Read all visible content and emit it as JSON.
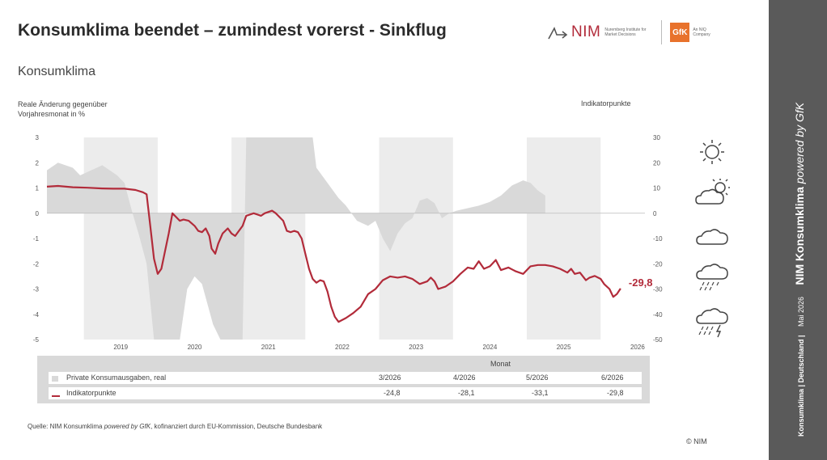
{
  "header": {
    "title": "Konsumklima beendet – zumindest vorerst - Sinkflug",
    "subtitle": "Konsumklima",
    "nim_logo_text": "NIM",
    "nim_logo_sub": "Nuremberg Institute for Market Decisions",
    "gfk_logo_text": "GfK",
    "gfk_logo_sub": "An NIQ Company"
  },
  "axes": {
    "left_label": "Reale Änderung gegenüber Vorjahresmonat in %",
    "right_label": "Indikatorpunkte"
  },
  "sidebar": {
    "brand_line_prefix": "NIM Konsumklima ",
    "brand_line_italic": "powered by GfK",
    "date": "Mai 2026",
    "region": "Konsumklima | Deutschland |"
  },
  "table": {
    "header": "Monat",
    "months": [
      "3/2026",
      "4/2026",
      "5/2026",
      "6/2026"
    ],
    "rows": [
      {
        "label": "Private Konsumausgaben, real",
        "values": [
          "",
          "",
          "",
          ""
        ]
      },
      {
        "label": "Indikatorpunkte",
        "values": [
          "-24,8",
          "-28,1",
          "-33,1",
          "-29,8"
        ]
      }
    ]
  },
  "source": {
    "prefix": "Quelle: NIM Konsumklima ",
    "italic": "powered by GfK",
    "suffix": ", kofinanziert durch EU-Kommission, Deutsche Bundesbank"
  },
  "copyright": "© NIM",
  "colors": {
    "indicator": "#b22b3a",
    "consumption": "#d9d9d9",
    "year_band": "#ececec",
    "sidebar": "#5a5a5a"
  },
  "weather_icons": [
    "sun-icon",
    "sun-cloud-icon",
    "cloud-icon",
    "rain-cloud-icon",
    "thunderstorm-icon"
  ],
  "chart_data": {
    "type": "area",
    "left_axis": {
      "ylim": [
        -5,
        3
      ],
      "ticks": [
        "3",
        "2",
        "1",
        "0",
        "-1",
        "-2",
        "-3",
        "-4",
        "-5"
      ]
    },
    "right_axis": {
      "ylim": [
        -50,
        30
      ],
      "ticks": [
        "30",
        "20",
        "10",
        "0",
        "-10",
        "-20",
        "-30",
        "-40",
        "-50"
      ]
    },
    "x_ticks": [
      "2019",
      "2020",
      "2021",
      "2022",
      "2023",
      "2024",
      "2025",
      "2026"
    ],
    "x_range": [
      2018.5,
      2026.6
    ],
    "shaded_years": [
      2019,
      2021,
      2023,
      2025
    ],
    "last_value_label": "-29,8",
    "series": [
      {
        "name": "Private Konsumausgaben, real",
        "axis": "left",
        "points": [
          [
            2018.5,
            1.7
          ],
          [
            2018.65,
            2.0
          ],
          [
            2018.85,
            1.8
          ],
          [
            2018.95,
            1.5
          ],
          [
            2019.1,
            1.7
          ],
          [
            2019.25,
            1.9
          ],
          [
            2019.45,
            1.5
          ],
          [
            2019.55,
            1.2
          ],
          [
            2019.65,
            0.1
          ],
          [
            2019.75,
            -0.9
          ],
          [
            2019.85,
            -2.0
          ],
          [
            2019.95,
            -5.0
          ],
          [
            2020.3,
            -5.0
          ],
          [
            2020.4,
            -3.0
          ],
          [
            2020.5,
            -2.5
          ],
          [
            2020.6,
            -2.8
          ],
          [
            2020.75,
            -4.4
          ],
          [
            2020.85,
            -5.0
          ],
          [
            2021.15,
            -5.0
          ],
          [
            2021.2,
            3.0
          ],
          [
            2021.5,
            3.0
          ],
          [
            2021.65,
            3.0
          ],
          [
            2022.1,
            3.0
          ],
          [
            2022.15,
            1.8
          ],
          [
            2022.3,
            1.2
          ],
          [
            2022.45,
            0.6
          ],
          [
            2022.55,
            0.3
          ],
          [
            2022.7,
            -0.3
          ],
          [
            2022.85,
            -0.5
          ],
          [
            2022.95,
            -0.3
          ],
          [
            2023.05,
            -1.0
          ],
          [
            2023.15,
            -1.5
          ],
          [
            2023.25,
            -0.8
          ],
          [
            2023.35,
            -0.4
          ],
          [
            2023.45,
            -0.2
          ],
          [
            2023.55,
            0.5
          ],
          [
            2023.65,
            0.6
          ],
          [
            2023.75,
            0.4
          ],
          [
            2023.85,
            -0.2
          ],
          [
            2023.95,
            0.0
          ],
          [
            2024.05,
            0.1
          ],
          [
            2024.2,
            0.2
          ],
          [
            2024.35,
            0.3
          ],
          [
            2024.5,
            0.45
          ],
          [
            2024.65,
            0.7
          ],
          [
            2024.8,
            1.1
          ],
          [
            2024.95,
            1.3
          ],
          [
            2025.05,
            1.2
          ],
          [
            2025.15,
            0.9
          ],
          [
            2025.25,
            0.7
          ]
        ]
      },
      {
        "name": "Indikatorpunkte",
        "axis": "right",
        "points": [
          [
            2018.5,
            10.5
          ],
          [
            2018.65,
            10.8
          ],
          [
            2018.85,
            10.3
          ],
          [
            2019.05,
            10.1
          ],
          [
            2019.25,
            9.8
          ],
          [
            2019.4,
            9.7
          ],
          [
            2019.55,
            9.7
          ],
          [
            2019.7,
            9.2
          ],
          [
            2019.8,
            8.3
          ],
          [
            2019.85,
            7.5
          ],
          [
            2019.9,
            -5
          ],
          [
            2019.95,
            -18
          ],
          [
            2020.0,
            -24
          ],
          [
            2020.05,
            -22
          ],
          [
            2020.15,
            -8
          ],
          [
            2020.2,
            0
          ],
          [
            2020.3,
            -3
          ],
          [
            2020.35,
            -2.5
          ],
          [
            2020.42,
            -3
          ],
          [
            2020.5,
            -5
          ],
          [
            2020.55,
            -7
          ],
          [
            2020.6,
            -7.5
          ],
          [
            2020.65,
            -6
          ],
          [
            2020.7,
            -9
          ],
          [
            2020.73,
            -14
          ],
          [
            2020.78,
            -16
          ],
          [
            2020.82,
            -12
          ],
          [
            2020.88,
            -8
          ],
          [
            2020.95,
            -6
          ],
          [
            2021.0,
            -8
          ],
          [
            2021.05,
            -9
          ],
          [
            2021.1,
            -7
          ],
          [
            2021.15,
            -5
          ],
          [
            2021.2,
            -1
          ],
          [
            2021.3,
            0
          ],
          [
            2021.35,
            -0.5
          ],
          [
            2021.4,
            -1
          ],
          [
            2021.45,
            0
          ],
          [
            2021.55,
            1
          ],
          [
            2021.6,
            0
          ],
          [
            2021.7,
            -3
          ],
          [
            2021.75,
            -7
          ],
          [
            2021.8,
            -7.5
          ],
          [
            2021.85,
            -7
          ],
          [
            2021.9,
            -7.5
          ],
          [
            2021.95,
            -10
          ],
          [
            2022.0,
            -16
          ],
          [
            2022.05,
            -22
          ],
          [
            2022.1,
            -26
          ],
          [
            2022.15,
            -27.5
          ],
          [
            2022.2,
            -26.5
          ],
          [
            2022.25,
            -27
          ],
          [
            2022.3,
            -31
          ],
          [
            2022.35,
            -37
          ],
          [
            2022.4,
            -41
          ],
          [
            2022.45,
            -43
          ],
          [
            2022.55,
            -41.5
          ],
          [
            2022.65,
            -39.5
          ],
          [
            2022.75,
            -37
          ],
          [
            2022.85,
            -32
          ],
          [
            2022.95,
            -30
          ],
          [
            2023.05,
            -26.5
          ],
          [
            2023.15,
            -25
          ],
          [
            2023.25,
            -25.5
          ],
          [
            2023.35,
            -25
          ],
          [
            2023.45,
            -26
          ],
          [
            2023.55,
            -28
          ],
          [
            2023.65,
            -27
          ],
          [
            2023.7,
            -25.5
          ],
          [
            2023.75,
            -27
          ],
          [
            2023.8,
            -30
          ],
          [
            2023.9,
            -29
          ],
          [
            2024.0,
            -27
          ],
          [
            2024.1,
            -24
          ],
          [
            2024.2,
            -21.5
          ],
          [
            2024.28,
            -22
          ],
          [
            2024.35,
            -19
          ],
          [
            2024.42,
            -22
          ],
          [
            2024.5,
            -21
          ],
          [
            2024.58,
            -18.5
          ],
          [
            2024.65,
            -22.5
          ],
          [
            2024.75,
            -21.5
          ],
          [
            2024.85,
            -23
          ],
          [
            2024.95,
            -24
          ],
          [
            2025.05,
            -21
          ],
          [
            2025.15,
            -20.5
          ],
          [
            2025.25,
            -20.5
          ],
          [
            2025.35,
            -21
          ],
          [
            2025.45,
            -22
          ],
          [
            2025.55,
            -23.5
          ],
          [
            2025.6,
            -22
          ],
          [
            2025.65,
            -24
          ],
          [
            2025.72,
            -23.5
          ],
          [
            2025.8,
            -26.5
          ],
          [
            2025.85,
            -25.5
          ],
          [
            2025.92,
            -24.8
          ],
          [
            2026.0,
            -26
          ],
          [
            2026.05,
            -28.1
          ],
          [
            2026.12,
            -30
          ],
          [
            2026.17,
            -33.1
          ],
          [
            2026.22,
            -32
          ],
          [
            2026.27,
            -29.8
          ]
        ]
      }
    ]
  }
}
